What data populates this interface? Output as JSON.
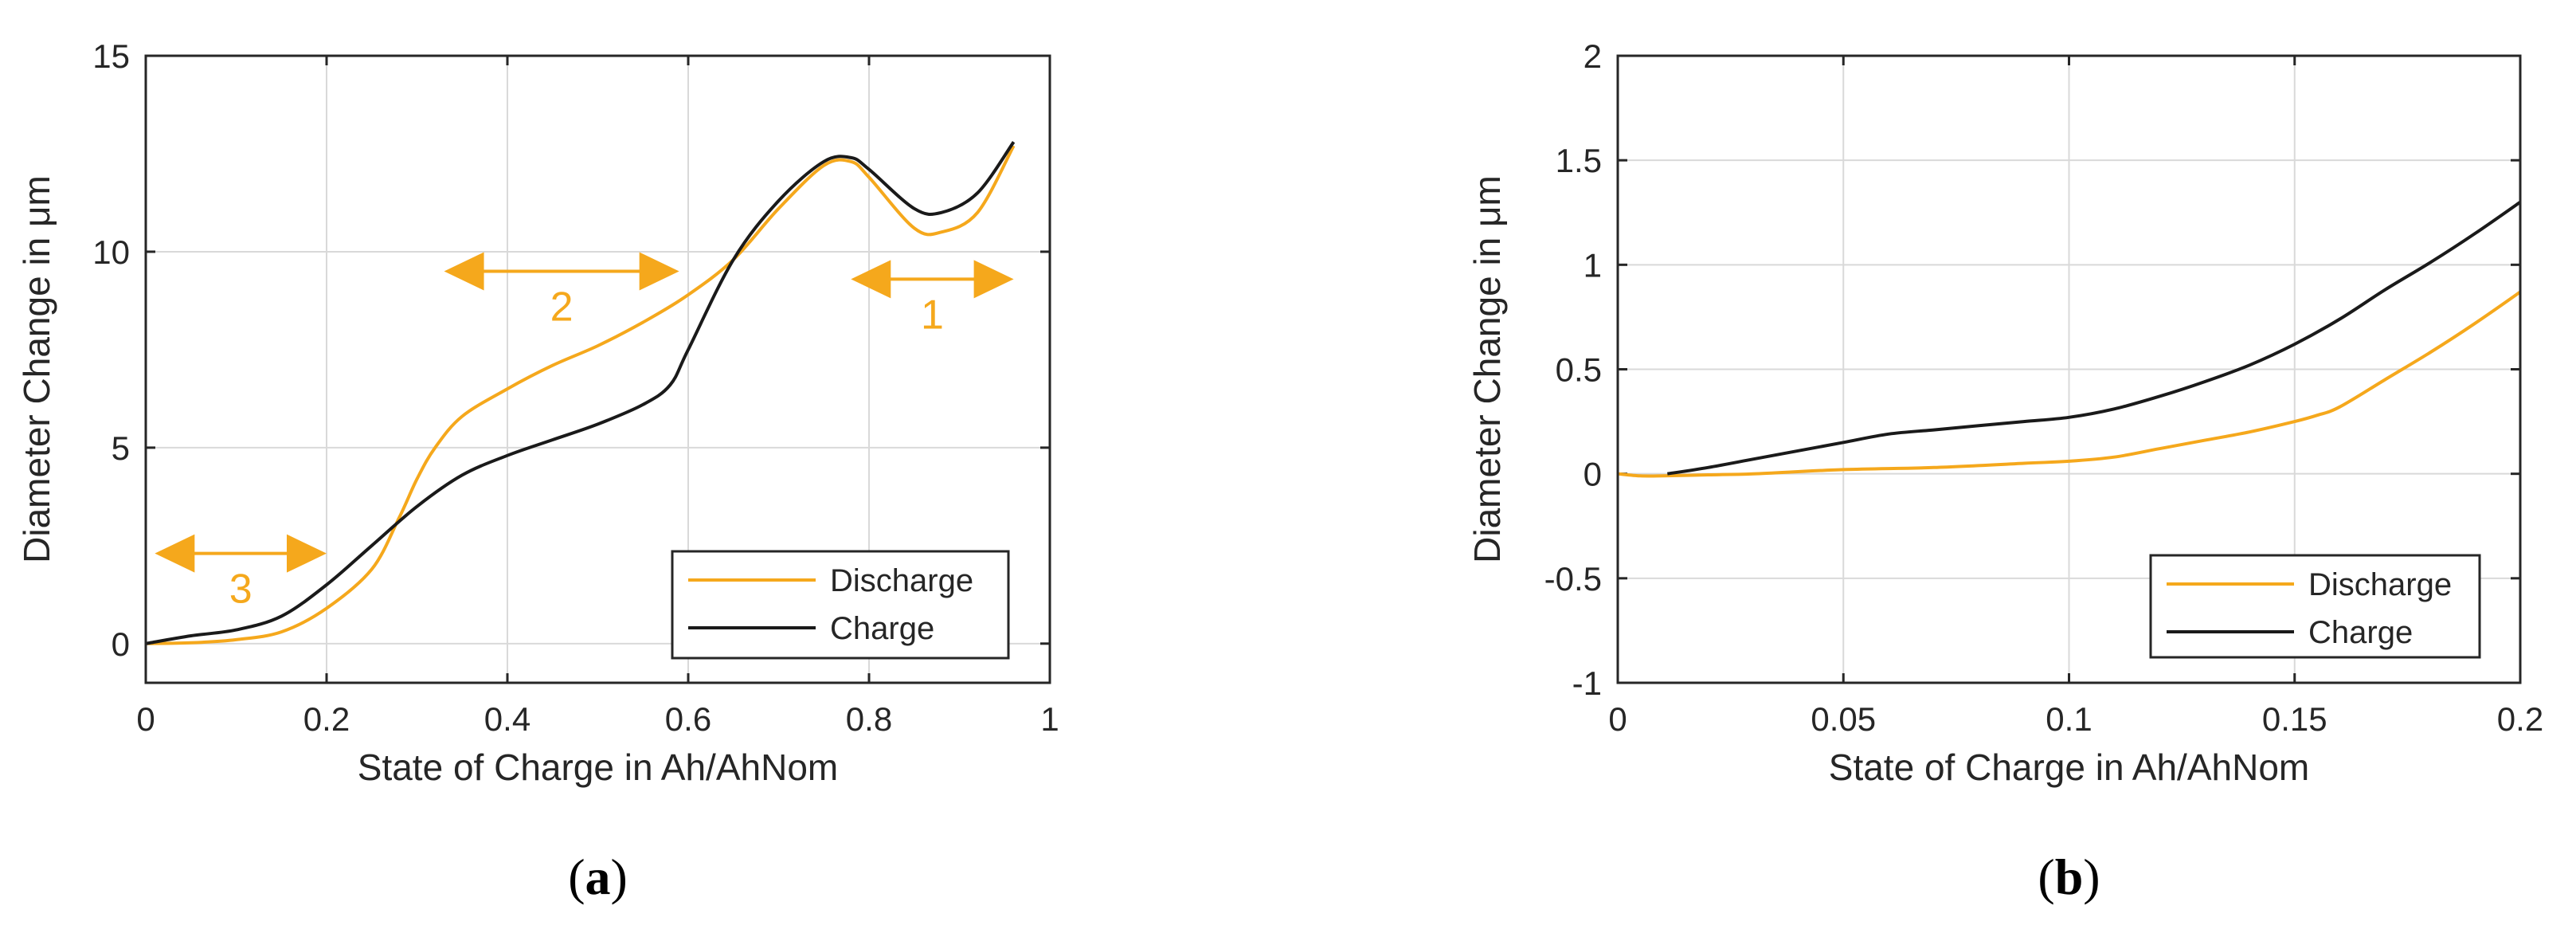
{
  "colors": {
    "discharge": "#F5A81C",
    "charge": "#1a1a1a",
    "annotation": "#F5A81C",
    "grid": "#d9d9d9",
    "axis": "#262626"
  },
  "chart_data": [
    {
      "type": "line",
      "panel": "(a)",
      "panel_letter": "a",
      "xlabel": "State of Charge in Ah/AhNom",
      "ylabel": "Diameter Change in μm",
      "xlim": [
        0,
        1
      ],
      "ylim": [
        -1,
        15
      ],
      "xticks": [
        0,
        0.2,
        0.4,
        0.6,
        0.8,
        1
      ],
      "xtick_labels": [
        "0",
        "0.2",
        "0.4",
        "0.6",
        "0.8",
        "1"
      ],
      "yticks": [
        0,
        5,
        10,
        15
      ],
      "ytick_labels": [
        "0",
        "5",
        "10",
        "15"
      ],
      "grid": true,
      "legend_position": "bottom-right",
      "series": [
        {
          "name": "Discharge",
          "color": "#F5A81C",
          "x": [
            0,
            0.05,
            0.1,
            0.15,
            0.2,
            0.25,
            0.28,
            0.3,
            0.32,
            0.35,
            0.4,
            0.45,
            0.5,
            0.55,
            0.6,
            0.65,
            0.7,
            0.75,
            0.78,
            0.8,
            0.85,
            0.88,
            0.92,
            0.96
          ],
          "y": [
            0,
            0.02,
            0.1,
            0.3,
            0.9,
            1.9,
            3.2,
            4.2,
            5.0,
            5.8,
            6.5,
            7.1,
            7.6,
            8.2,
            8.9,
            9.8,
            11.1,
            12.2,
            12.3,
            11.9,
            10.6,
            10.5,
            11.0,
            12.7
          ]
        },
        {
          "name": "Charge",
          "color": "#1a1a1a",
          "x": [
            0,
            0.05,
            0.1,
            0.15,
            0.2,
            0.25,
            0.3,
            0.35,
            0.4,
            0.45,
            0.5,
            0.55,
            0.58,
            0.6,
            0.65,
            0.7,
            0.75,
            0.78,
            0.8,
            0.85,
            0.88,
            0.92,
            0.96
          ],
          "y": [
            0,
            0.2,
            0.35,
            0.7,
            1.5,
            2.5,
            3.5,
            4.3,
            4.8,
            5.2,
            5.6,
            6.1,
            6.6,
            7.5,
            9.8,
            11.3,
            12.3,
            12.4,
            12.1,
            11.1,
            11.0,
            11.5,
            12.8
          ]
        }
      ],
      "annotations": [
        {
          "label": "1",
          "x_start": 0.78,
          "x_end": 0.96,
          "y": 9.3
        },
        {
          "label": "2",
          "x_start": 0.33,
          "x_end": 0.59,
          "y": 9.5
        },
        {
          "label": "3",
          "x_start": 0.01,
          "x_end": 0.2,
          "y": 2.3
        }
      ]
    },
    {
      "type": "line",
      "panel": "(b)",
      "panel_letter": "b",
      "xlabel": "State of Charge in Ah/AhNom",
      "ylabel": "Diameter Change in μm",
      "xlim": [
        0,
        0.2
      ],
      "ylim": [
        -1,
        2
      ],
      "xticks": [
        0,
        0.05,
        0.1,
        0.15,
        0.2
      ],
      "xtick_labels": [
        "0",
        "0.05",
        "0.1",
        "0.15",
        "0.2"
      ],
      "yticks": [
        -1,
        -0.5,
        0,
        0.5,
        1,
        1.5,
        2
      ],
      "ytick_labels": [
        "-1",
        "-0.5",
        "0",
        "0.5",
        "1",
        "1.5",
        "2"
      ],
      "grid": true,
      "legend_position": "bottom-right",
      "series": [
        {
          "name": "Discharge",
          "color": "#F5A81C",
          "x": [
            0,
            0.005,
            0.01,
            0.02,
            0.03,
            0.05,
            0.07,
            0.09,
            0.1,
            0.11,
            0.12,
            0.13,
            0.14,
            0.15,
            0.155,
            0.16,
            0.17,
            0.18,
            0.19,
            0.2
          ],
          "y": [
            0,
            -0.01,
            -0.01,
            -0.005,
            0.0,
            0.02,
            0.03,
            0.05,
            0.06,
            0.08,
            0.12,
            0.16,
            0.2,
            0.25,
            0.28,
            0.32,
            0.45,
            0.58,
            0.72,
            0.87
          ]
        },
        {
          "name": "Charge",
          "color": "#1a1a1a",
          "x": [
            0.011,
            0.02,
            0.03,
            0.04,
            0.05,
            0.06,
            0.07,
            0.08,
            0.09,
            0.1,
            0.11,
            0.12,
            0.13,
            0.14,
            0.15,
            0.16,
            0.17,
            0.18,
            0.19,
            0.2
          ],
          "y": [
            0,
            0.03,
            0.07,
            0.11,
            0.15,
            0.19,
            0.21,
            0.23,
            0.25,
            0.27,
            0.31,
            0.37,
            0.44,
            0.52,
            0.62,
            0.74,
            0.88,
            1.01,
            1.15,
            1.3
          ]
        }
      ],
      "annotations": []
    }
  ]
}
